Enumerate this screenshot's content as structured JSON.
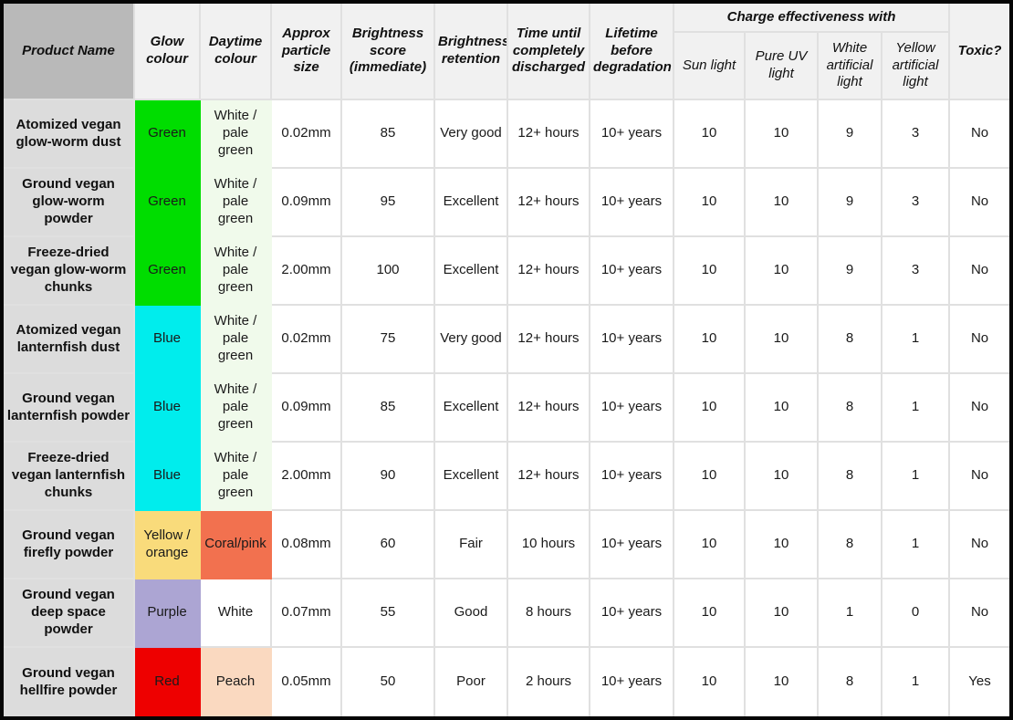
{
  "table": {
    "headers": {
      "product": "Product Name",
      "glow": "Glow colour",
      "daytime": "Daytime colour",
      "particle": "Approx particle size",
      "brightness_score": "Brightness score (immediate)",
      "brightness_retention": "Brightness retention",
      "discharge": "Time until completely discharged",
      "lifetime": "Lifetime before degradation",
      "charge_group": "Charge effectiveness with",
      "charge_sub": [
        "Sun light",
        "Pure UV light",
        "White artificial light",
        "Yellow artificial light"
      ],
      "toxic": "Toxic?"
    },
    "rows": [
      {
        "product": "Atomized vegan glow-worm dust",
        "glow": {
          "label": "Green",
          "color": "#00DD00"
        },
        "daytime": {
          "label": "White / pale green",
          "color": "#F0FAEB"
        },
        "particle": "0.02mm",
        "brightness_score": "85",
        "brightness_retention": "Very good",
        "discharge": "12+ hours",
        "lifetime": "10+ years",
        "charge": [
          "10",
          "10",
          "9",
          "3"
        ],
        "toxic": "No"
      },
      {
        "product": "Ground vegan glow-worm powder",
        "glow": {
          "label": "Green",
          "color": "#00DD00"
        },
        "daytime": {
          "label": "White / pale green",
          "color": "#F0FAEB"
        },
        "particle": "0.09mm",
        "brightness_score": "95",
        "brightness_retention": "Excellent",
        "discharge": "12+ hours",
        "lifetime": "10+ years",
        "charge": [
          "10",
          "10",
          "9",
          "3"
        ],
        "toxic": "No"
      },
      {
        "product": "Freeze-dried vegan glow-worm chunks",
        "glow": {
          "label": "Green",
          "color": "#00DD00"
        },
        "daytime": {
          "label": "White / pale green",
          "color": "#F0FAEB"
        },
        "particle": "2.00mm",
        "brightness_score": "100",
        "brightness_retention": "Excellent",
        "discharge": "12+ hours",
        "lifetime": "10+ years",
        "charge": [
          "10",
          "10",
          "9",
          "3"
        ],
        "toxic": "No"
      },
      {
        "product": "Atomized vegan lanternfish dust",
        "glow": {
          "label": "Blue",
          "color": "#00EDED"
        },
        "daytime": {
          "label": "White / pale green",
          "color": "#F0FAEB"
        },
        "particle": "0.02mm",
        "brightness_score": "75",
        "brightness_retention": "Very good",
        "discharge": "12+ hours",
        "lifetime": "10+ years",
        "charge": [
          "10",
          "10",
          "8",
          "1"
        ],
        "toxic": "No"
      },
      {
        "product": "Ground vegan lanternfish powder",
        "glow": {
          "label": "Blue",
          "color": "#00EDED"
        },
        "daytime": {
          "label": "White / pale green",
          "color": "#F0FAEB"
        },
        "particle": "0.09mm",
        "brightness_score": "85",
        "brightness_retention": "Excellent",
        "discharge": "12+ hours",
        "lifetime": "10+ years",
        "charge": [
          "10",
          "10",
          "8",
          "1"
        ],
        "toxic": "No"
      },
      {
        "product": "Freeze-dried vegan lanternfish chunks",
        "glow": {
          "label": "Blue",
          "color": "#00EDED"
        },
        "daytime": {
          "label": "White / pale green",
          "color": "#F0FAEB"
        },
        "particle": "2.00mm",
        "brightness_score": "90",
        "brightness_retention": "Excellent",
        "discharge": "12+ hours",
        "lifetime": "10+ years",
        "charge": [
          "10",
          "10",
          "8",
          "1"
        ],
        "toxic": "No"
      },
      {
        "product": "Ground vegan firefly powder",
        "glow": {
          "label": "Yellow / orange",
          "color": "#F9DB7B"
        },
        "daytime": {
          "label": "Coral/pink",
          "color": "#F2714F"
        },
        "particle": "0.08mm",
        "brightness_score": "60",
        "brightness_retention": "Fair",
        "discharge": "10 hours",
        "lifetime": "10+ years",
        "charge": [
          "10",
          "10",
          "8",
          "1"
        ],
        "toxic": "No"
      },
      {
        "product": "Ground vegan deep space powder",
        "glow": {
          "label": "Purple",
          "color": "#ACA5D3"
        },
        "daytime": {
          "label": "White",
          "color": "#FFFFFF"
        },
        "particle": "0.07mm",
        "brightness_score": "55",
        "brightness_retention": "Good",
        "discharge": "8 hours",
        "lifetime": "10+ years",
        "charge": [
          "10",
          "10",
          "1",
          "0"
        ],
        "toxic": "No"
      },
      {
        "product": "Ground vegan hellfire powder",
        "glow": {
          "label": "Red",
          "color": "#EE0000"
        },
        "daytime": {
          "label": "Peach",
          "color": "#FAD9C0"
        },
        "particle": "0.05mm",
        "brightness_score": "50",
        "brightness_retention": "Poor",
        "discharge": "2 hours",
        "lifetime": "10+ years",
        "charge": [
          "10",
          "10",
          "8",
          "1"
        ],
        "toxic": "Yes"
      }
    ]
  }
}
